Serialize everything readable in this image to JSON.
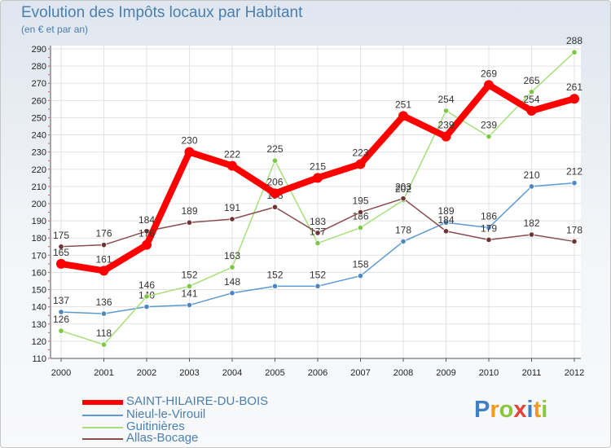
{
  "title": "Evolution des Impôts locaux par Habitant",
  "subtitle": "(en € et par an)",
  "logo": {
    "text": "Proxiti",
    "letters": [
      "P",
      "r",
      "o",
      "x",
      "i",
      "t",
      "i"
    ],
    "colors": [
      "#3f80c4",
      "#f29a1d",
      "#8cc63f",
      "#e2433a",
      "#3f80c4",
      "#f29a1d",
      "#8cc63f"
    ]
  },
  "chart_data": {
    "type": "line",
    "title": "Evolution des Impôts locaux par Habitant",
    "subtitle": "(en € et par an)",
    "xlabel": "",
    "ylabel": "",
    "x": [
      "2000",
      "2001",
      "2002",
      "2003",
      "2004",
      "2005",
      "2006",
      "2007",
      "2008",
      "2009",
      "2010",
      "2011",
      "2012"
    ],
    "ylim": [
      110,
      290
    ],
    "yticks": [
      110,
      120,
      130,
      140,
      150,
      160,
      170,
      180,
      190,
      200,
      210,
      220,
      230,
      240,
      250,
      260,
      270,
      280,
      290
    ],
    "grid": true,
    "legend_position": "bottom-left",
    "series": [
      {
        "name": "Nieul-le-Virouil",
        "color": "#5b9ad5",
        "marker": "#4e87c0",
        "values": [
          137,
          136,
          140,
          141,
          148,
          152,
          152,
          158,
          178,
          189,
          186,
          210,
          212
        ],
        "labels": [
          "137",
          "136",
          "140",
          "141",
          "148",
          "152",
          "152",
          "158",
          "178",
          "189",
          "186",
          "210",
          "212"
        ]
      },
      {
        "name": "Guitinières",
        "color": "#a6e07a",
        "marker": "#7cc843",
        "values": [
          126,
          118,
          146,
          152,
          163,
          225,
          177,
          186,
          202,
          254,
          239,
          265,
          288
        ],
        "labels": [
          "126",
          "118",
          "146",
          "152",
          "163",
          "225",
          "177",
          "186",
          "202",
          "254",
          "239",
          "265",
          "288"
        ]
      },
      {
        "name": "Allas-Bocage",
        "color": "#8a4d4d",
        "marker": "#6e3434",
        "values": [
          175,
          176,
          184,
          189,
          191,
          198,
          183,
          195,
          203,
          184,
          179,
          182,
          178
        ],
        "labels": [
          "175",
          "176",
          "184",
          "189",
          "191",
          "198",
          "183",
          "195",
          "203",
          "184",
          "179",
          "182",
          "178"
        ]
      },
      {
        "name": "SAINT-HILAIRE-DU-BOIS",
        "color": "#ff0000",
        "marker": "#ff0000",
        "values": [
          165,
          161,
          176,
          230,
          222,
          206,
          215,
          223,
          251,
          239,
          269,
          254,
          261
        ],
        "labels": [
          "165",
          "161",
          "176",
          "230",
          "222",
          "206",
          "215",
          "223",
          "251",
          "239",
          "269",
          "254",
          "261"
        ]
      }
    ]
  },
  "legend": [
    {
      "name": "SAINT-HILAIRE-DU-BOIS",
      "color": "#ff0000"
    },
    {
      "name": "Nieul-le-Virouil",
      "color": "#5b9ad5"
    },
    {
      "name": "Guitinières",
      "color": "#a6e07a"
    },
    {
      "name": "Allas-Bocage",
      "color": "#8a4d4d"
    }
  ]
}
